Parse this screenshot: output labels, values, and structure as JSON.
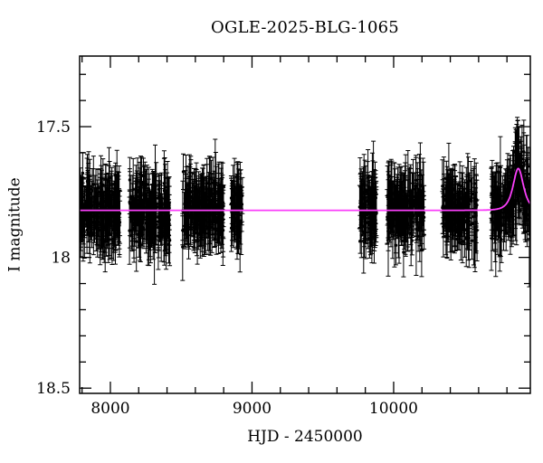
{
  "chart_data": {
    "type": "scatter",
    "title": "OGLE-2025-BLG-1065",
    "xlabel": "HJD - 2450000",
    "ylabel": "I magnitude",
    "xlim": [
      7783,
      10965
    ],
    "ylim": [
      18.52,
      17.23
    ],
    "x_major_ticks": [
      8000,
      9000,
      10000
    ],
    "x_tick_labels": [
      "8000",
      "9000",
      "10000"
    ],
    "x_minor_step": 200,
    "y_major_ticks": [
      17.5,
      18.0,
      18.5
    ],
    "y_tick_labels": [
      "17.5",
      "18",
      "18.5"
    ],
    "y_minor_step": 0.1,
    "grid": false,
    "legend": null,
    "background_color": "#ffffff",
    "frame_color": "#000000",
    "point_color": "#000000",
    "model_color": "#fa3ffa",
    "baseline_mag": 17.82,
    "scatter_sigma": 0.053,
    "errorbar_range": [
      0.04,
      0.13
    ],
    "model": {
      "type": "paczynski",
      "t0": 10880,
      "tE": 36,
      "u0": 1.4,
      "baseline_mag": 17.82,
      "peak_mag": 17.66
    },
    "seasons": [
      {
        "start": 7785,
        "end": 8070,
        "n": 210
      },
      {
        "start": 8135,
        "end": 8420,
        "n": 200
      },
      {
        "start": 8510,
        "end": 8800,
        "n": 200
      },
      {
        "start": 8852,
        "end": 8935,
        "n": 55
      },
      {
        "start": 9760,
        "end": 9880,
        "n": 100
      },
      {
        "start": 9955,
        "end": 10215,
        "n": 175
      },
      {
        "start": 10343,
        "end": 10590,
        "n": 165
      },
      {
        "start": 10690,
        "end": 10963,
        "n": 215
      }
    ]
  }
}
